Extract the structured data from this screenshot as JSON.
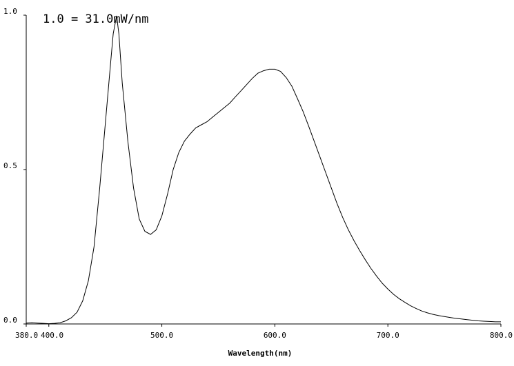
{
  "chart_data": {
    "type": "line",
    "scale_note": "1.0 = 31.0mW/nm",
    "xlabel": "Wavelength(nm)",
    "ylabel": "",
    "xlim": [
      380,
      800
    ],
    "ylim": [
      0,
      1.0
    ],
    "x_ticks": [
      {
        "value": 380,
        "label": "380.0"
      },
      {
        "value": 400,
        "label": "400.0"
      },
      {
        "value": 500,
        "label": "500.0"
      },
      {
        "value": 600,
        "label": "600.0"
      },
      {
        "value": 700,
        "label": "700.0"
      },
      {
        "value": 800,
        "label": "800.0"
      }
    ],
    "y_ticks": [
      {
        "value": 0.0,
        "label": "0.0"
      },
      {
        "value": 0.5,
        "label": "0.5"
      },
      {
        "value": 1.0,
        "label": "1.0"
      }
    ],
    "grid": false,
    "legend": "none",
    "line_color": "#000000",
    "series": [
      {
        "x": [
          380,
          385,
          390,
          395,
          400,
          405,
          410,
          415,
          420,
          425,
          430,
          435,
          440,
          445,
          450,
          455,
          457,
          460,
          462,
          465,
          470,
          475,
          480,
          485,
          490,
          495,
          500,
          505,
          510,
          515,
          520,
          525,
          530,
          535,
          540,
          545,
          550,
          555,
          560,
          565,
          570,
          575,
          580,
          585,
          590,
          595,
          600,
          605,
          610,
          615,
          620,
          625,
          630,
          635,
          640,
          645,
          650,
          655,
          660,
          665,
          670,
          675,
          680,
          685,
          690,
          695,
          700,
          705,
          710,
          715,
          720,
          725,
          730,
          735,
          740,
          745,
          750,
          755,
          760,
          765,
          770,
          775,
          780,
          785,
          790,
          795,
          800
        ],
        "y": [
          0.003,
          0.004,
          0.003,
          0.002,
          0.001,
          0.002,
          0.004,
          0.01,
          0.02,
          0.038,
          0.075,
          0.14,
          0.25,
          0.44,
          0.65,
          0.86,
          0.94,
          0.998,
          0.94,
          0.78,
          0.59,
          0.44,
          0.34,
          0.3,
          0.29,
          0.305,
          0.35,
          0.42,
          0.5,
          0.555,
          0.592,
          0.615,
          0.635,
          0.645,
          0.655,
          0.67,
          0.685,
          0.7,
          0.715,
          0.735,
          0.755,
          0.775,
          0.795,
          0.812,
          0.82,
          0.825,
          0.825,
          0.818,
          0.798,
          0.77,
          0.73,
          0.688,
          0.64,
          0.59,
          0.54,
          0.49,
          0.44,
          0.39,
          0.345,
          0.305,
          0.27,
          0.238,
          0.208,
          0.18,
          0.155,
          0.132,
          0.113,
          0.096,
          0.082,
          0.07,
          0.059,
          0.05,
          0.042,
          0.036,
          0.031,
          0.027,
          0.024,
          0.021,
          0.018,
          0.016,
          0.014,
          0.012,
          0.01,
          0.009,
          0.008,
          0.007,
          0.007
        ]
      }
    ]
  }
}
